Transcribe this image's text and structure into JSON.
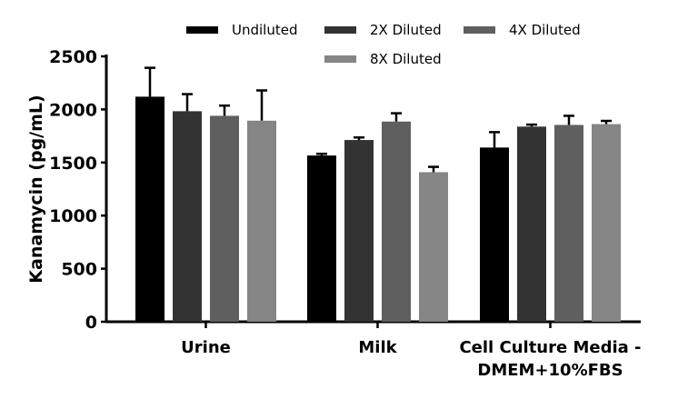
{
  "chart_data": {
    "type": "bar",
    "title": "",
    "xlabel": "",
    "ylabel": "Kanamycin (pg/mL)",
    "ylim": [
      0,
      2500
    ],
    "yticks": [
      0,
      500,
      1000,
      1500,
      2000,
      2500
    ],
    "grid": false,
    "legend_position": "top",
    "categories": [
      "Urine",
      "Milk",
      "Cell Culture Media -\nDMEM+10%FBS"
    ],
    "series": [
      {
        "name": "Undiluted",
        "color": "#000000",
        "values": [
          2120,
          1566,
          1641
        ],
        "error_upper": [
          2392,
          1582,
          1786
        ]
      },
      {
        "name": "2X Diluted",
        "color": "#333333",
        "values": [
          1983,
          1712,
          1838
        ],
        "error_upper": [
          2144,
          1736,
          1857
        ]
      },
      {
        "name": "4X Diluted",
        "color": "#5f5f5f",
        "values": [
          1940,
          1886,
          1854
        ],
        "error_upper": [
          2036,
          1964,
          1940
        ]
      },
      {
        "name": "8X Diluted",
        "color": "#858585",
        "values": [
          1894,
          1409,
          1862
        ],
        "error_upper": [
          2179,
          1459,
          1892
        ]
      }
    ]
  }
}
